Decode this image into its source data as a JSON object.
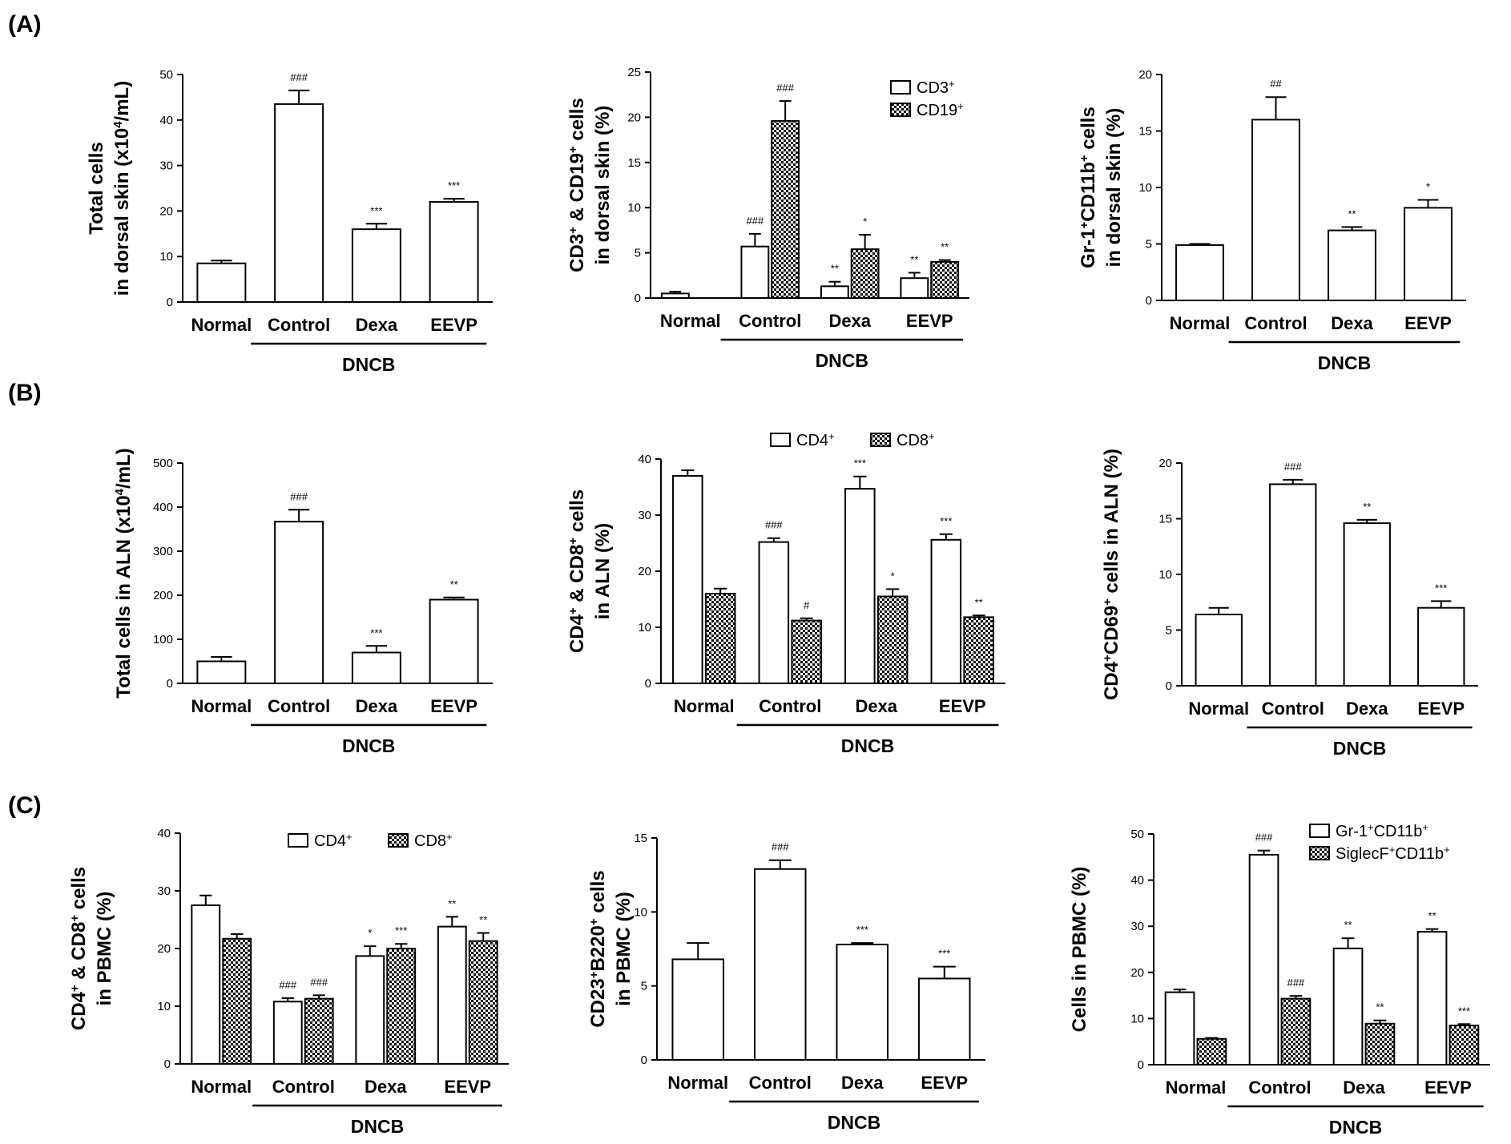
{
  "panel_labels": [
    "(A)",
    "(B)",
    "(C)"
  ],
  "chart_data": [
    {
      "id": "A1",
      "type": "bar",
      "ylabel_lines": [
        {
          "text": "Total  cells"
        },
        {
          "text": "in dorsal skin (x10",
          "sup": "4",
          "after": "/mL)"
        }
      ],
      "ylim": [
        0,
        50
      ],
      "yticks": [
        0,
        10,
        20,
        30,
        40,
        50
      ],
      "categories": [
        "Normal",
        "Control",
        "Dexa",
        "EEVP"
      ],
      "group_label": "DNCB",
      "series": [
        {
          "name": "",
          "pattern": "open",
          "values": [
            8.5,
            43.5,
            16,
            22
          ],
          "errors": [
            0.6,
            3,
            1.2,
            0.7
          ],
          "sig": [
            "",
            "###",
            "***",
            "***"
          ]
        }
      ]
    },
    {
      "id": "A2",
      "type": "bar",
      "ylabel_lines": [
        {
          "text": "CD3",
          "sup": "+",
          "after": " & CD19",
          "sup2": "+",
          "after2": " cells"
        },
        {
          "text": "in dorsal skin (%)"
        }
      ],
      "ylim": [
        0,
        25
      ],
      "yticks": [
        0,
        5,
        10,
        15,
        20,
        25
      ],
      "categories": [
        "Normal",
        "Control",
        "Dexa",
        "EEVP"
      ],
      "group_label": "DNCB",
      "legend": [
        {
          "name": "CD3",
          "sup": "+",
          "pattern": "open"
        },
        {
          "name": "CD19",
          "sup": "+",
          "pattern": "checker"
        }
      ],
      "series": [
        {
          "name": "CD3+",
          "pattern": "open",
          "values": [
            0.5,
            5.7,
            1.3,
            2.2
          ],
          "errors": [
            0.2,
            1.4,
            0.5,
            0.6
          ],
          "sig": [
            "",
            "###",
            "**",
            "**"
          ]
        },
        {
          "name": "CD19+",
          "pattern": "checker",
          "values": [
            0,
            19.6,
            5.4,
            4
          ],
          "errors": [
            0,
            2.2,
            1.6,
            0.2
          ],
          "sig": [
            "",
            "###",
            "*",
            "**"
          ]
        }
      ]
    },
    {
      "id": "A3",
      "type": "bar",
      "ylabel_lines": [
        {
          "text": "Gr-1",
          "sup": "+",
          "after": "CD11b",
          "sup2": "+",
          "after2": " cells"
        },
        {
          "text": "in dorsal skin (%)"
        }
      ],
      "ylim": [
        0,
        20
      ],
      "yticks": [
        0,
        5,
        10,
        15,
        20
      ],
      "categories": [
        "Normal",
        "Control",
        "Dexa",
        "EEVP"
      ],
      "group_label": "DNCB",
      "series": [
        {
          "name": "",
          "pattern": "open",
          "values": [
            4.9,
            16,
            6.2,
            8.2
          ],
          "errors": [
            0.1,
            2,
            0.3,
            0.7
          ],
          "sig": [
            "",
            "##",
            "**",
            "*"
          ]
        }
      ]
    },
    {
      "id": "B1",
      "type": "bar",
      "ylabel_lines": [
        {
          "text": "Total  cells in ALN (x10",
          "sup": "4",
          "after": "/mL)"
        }
      ],
      "ylim": [
        0,
        500
      ],
      "yticks": [
        0,
        100,
        200,
        300,
        400,
        500
      ],
      "categories": [
        "Normal",
        "Control",
        "Dexa",
        "EEVP"
      ],
      "group_label": "DNCB",
      "series": [
        {
          "name": "",
          "pattern": "open",
          "values": [
            50,
            367,
            70,
            190
          ],
          "errors": [
            10,
            27,
            15,
            5
          ],
          "sig": [
            "",
            "###",
            "***",
            "**"
          ]
        }
      ]
    },
    {
      "id": "B2",
      "type": "bar",
      "ylabel_lines": [
        {
          "text": "CD4",
          "sup": "+",
          "after": " & CD8",
          "sup2": "+",
          "after2": " cells"
        },
        {
          "text": "in ALN (%)"
        }
      ],
      "ylim": [
        0,
        40
      ],
      "yticks": [
        0,
        10,
        20,
        30,
        40
      ],
      "categories": [
        "Normal",
        "Control",
        "Dexa",
        "EEVP"
      ],
      "group_label": "DNCB",
      "legend": [
        {
          "name": "CD4",
          "sup": "+",
          "pattern": "open"
        },
        {
          "name": "CD8",
          "sup": "+",
          "pattern": "checker"
        }
      ],
      "series": [
        {
          "name": "CD4+",
          "pattern": "open",
          "values": [
            37,
            25.2,
            34.7,
            25.6
          ],
          "errors": [
            1,
            0.7,
            2.2,
            1
          ],
          "sig": [
            "",
            "###",
            "***",
            "***"
          ]
        },
        {
          "name": "CD8+",
          "pattern": "checker",
          "values": [
            16,
            11.2,
            15.5,
            11.8
          ],
          "errors": [
            0.9,
            0.4,
            1.3,
            0.3
          ],
          "sig": [
            "",
            "#",
            "*",
            "**"
          ]
        }
      ]
    },
    {
      "id": "B3",
      "type": "bar",
      "ylabel_lines": [
        {
          "text": "CD4",
          "sup": "+",
          "after": "CD69",
          "sup2": "+",
          "after2": " cells in ALN (%)"
        }
      ],
      "ylim": [
        0,
        20
      ],
      "yticks": [
        0,
        5,
        10,
        15,
        20
      ],
      "categories": [
        "Normal",
        "Control",
        "Dexa",
        "EEVP"
      ],
      "group_label": "DNCB",
      "series": [
        {
          "name": "",
          "pattern": "open",
          "values": [
            6.4,
            18.1,
            14.6,
            7
          ],
          "errors": [
            0.6,
            0.4,
            0.3,
            0.6
          ],
          "sig": [
            "",
            "###",
            "**",
            "***"
          ]
        }
      ]
    },
    {
      "id": "C1",
      "type": "bar",
      "ylabel_lines": [
        {
          "text": "CD4",
          "sup": "+",
          "after": " & CD8",
          "sup2": "+",
          "after2": " cells"
        },
        {
          "text": "in PBMC (%)"
        }
      ],
      "ylim": [
        0,
        40
      ],
      "yticks": [
        0,
        10,
        20,
        30,
        40
      ],
      "categories": [
        "Normal",
        "Control",
        "Dexa",
        "EEVP"
      ],
      "group_label": "DNCB",
      "legend": [
        {
          "name": "CD4",
          "sup": "+",
          "pattern": "open"
        },
        {
          "name": "CD8",
          "sup": "+",
          "pattern": "checker"
        }
      ],
      "series": [
        {
          "name": "CD4+",
          "pattern": "open",
          "values": [
            27.5,
            10.8,
            18.7,
            23.8
          ],
          "errors": [
            1.7,
            0.6,
            1.7,
            1.7
          ],
          "sig": [
            "",
            "###",
            "*",
            "**"
          ]
        },
        {
          "name": "CD8+",
          "pattern": "checker",
          "values": [
            21.7,
            11.3,
            20,
            21.3
          ],
          "errors": [
            0.8,
            0.6,
            0.8,
            1.4
          ],
          "sig": [
            "",
            "###",
            "***",
            "**"
          ]
        }
      ]
    },
    {
      "id": "C2",
      "type": "bar",
      "ylabel_lines": [
        {
          "text": "CD23",
          "sup": "+",
          "after": "B220",
          "sup2": "+",
          "after2": " cells"
        },
        {
          "text": "in PBMC (%)"
        }
      ],
      "ylim": [
        0,
        15
      ],
      "yticks": [
        0,
        5,
        10,
        15
      ],
      "categories": [
        "Normal",
        "Control",
        "Dexa",
        "EEVP"
      ],
      "group_label": "DNCB",
      "series": [
        {
          "name": "",
          "pattern": "open",
          "values": [
            6.8,
            12.9,
            7.8,
            5.5
          ],
          "errors": [
            1.1,
            0.6,
            0.1,
            0.8
          ],
          "sig": [
            "",
            "###",
            "***",
            "***"
          ]
        }
      ]
    },
    {
      "id": "C3",
      "type": "bar",
      "ylabel_lines": [
        {
          "text": "Cells in PBMC (%)"
        }
      ],
      "ylim": [
        0,
        50
      ],
      "yticks": [
        0,
        10,
        20,
        30,
        40,
        50
      ],
      "categories": [
        "Normal",
        "Control",
        "Dexa",
        "EEVP"
      ],
      "group_label": "DNCB",
      "legend": [
        {
          "name": "Gr-1",
          "sup": "+",
          "after": "CD11b",
          "sup2": "+",
          "pattern": "open"
        },
        {
          "name": "SiglecF",
          "sup": "+",
          "after": "CD11b",
          "sup2": "+",
          "pattern": "checker"
        }
      ],
      "series": [
        {
          "name": "Gr-1+CD11b+",
          "pattern": "open",
          "values": [
            15.7,
            45.5,
            25.2,
            28.8
          ],
          "errors": [
            0.6,
            0.9,
            2.2,
            0.6
          ],
          "sig": [
            "",
            "###",
            "**",
            "**"
          ]
        },
        {
          "name": "SiglecF+CD11b+",
          "pattern": "checker",
          "values": [
            5.6,
            14.3,
            8.9,
            8.5
          ],
          "errors": [
            0.2,
            0.6,
            0.7,
            0.3
          ],
          "sig": [
            "",
            "###",
            "**",
            "***"
          ]
        }
      ]
    }
  ]
}
